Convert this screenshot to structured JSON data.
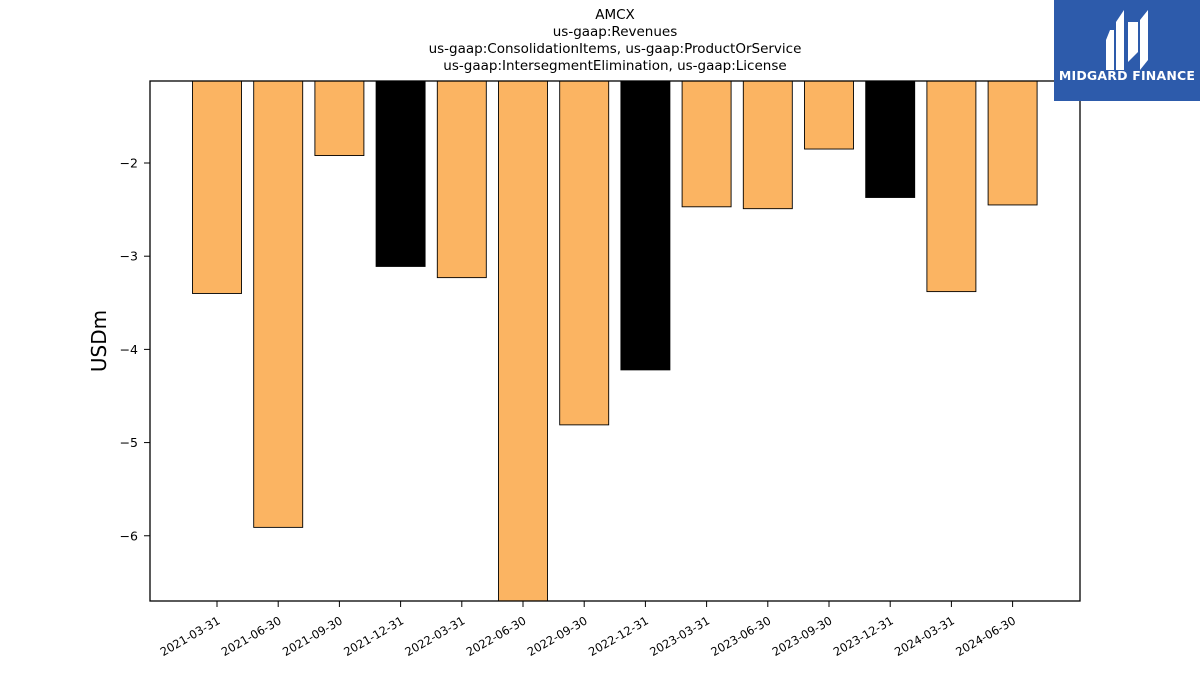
{
  "titles": {
    "line1": "AMCX",
    "line2": "us-gaap:Revenues",
    "line3": "us-gaap:ConsolidationItems, us-gaap:ProductOrService",
    "line4": "us-gaap:IntersegmentElimination, us-gaap:License"
  },
  "logo": {
    "text": "MIDGARD FINANCE",
    "background": "#2d5bab"
  },
  "chart_data": {
    "type": "bar",
    "title": "AMCX\nus-gaap:Revenues\nus-gaap:ConsolidationItems, us-gaap:ProductOrService\nus-gaap:IntersegmentElimination, us-gaap:License",
    "xlabel": "",
    "ylabel": "USDm",
    "categories": [
      "2021-03-31",
      "2021-06-30",
      "2021-09-30",
      "2021-12-31",
      "2022-03-31",
      "2022-06-30",
      "2022-09-30",
      "2022-12-31",
      "2023-03-31",
      "2023-06-30",
      "2023-09-30",
      "2023-12-31",
      "2024-03-31",
      "2024-06-30"
    ],
    "values": [
      -3.4,
      -5.91,
      -1.92,
      -3.11,
      -3.23,
      -6.72,
      -4.81,
      -4.22,
      -2.47,
      -2.49,
      -1.85,
      -2.37,
      -3.38,
      -2.45
    ],
    "bar_colors": [
      "#fbb462",
      "#fbb462",
      "#fbb462",
      "#000000",
      "#fbb462",
      "#fbb462",
      "#fbb462",
      "#000000",
      "#fbb462",
      "#fbb462",
      "#fbb462",
      "#000000",
      "#fbb462",
      "#fbb462"
    ],
    "ylim": [
      -6.7,
      -1.12
    ],
    "yticks": [
      -6,
      -5,
      -4,
      -3,
      -2
    ],
    "grid": false,
    "legend": "none"
  }
}
